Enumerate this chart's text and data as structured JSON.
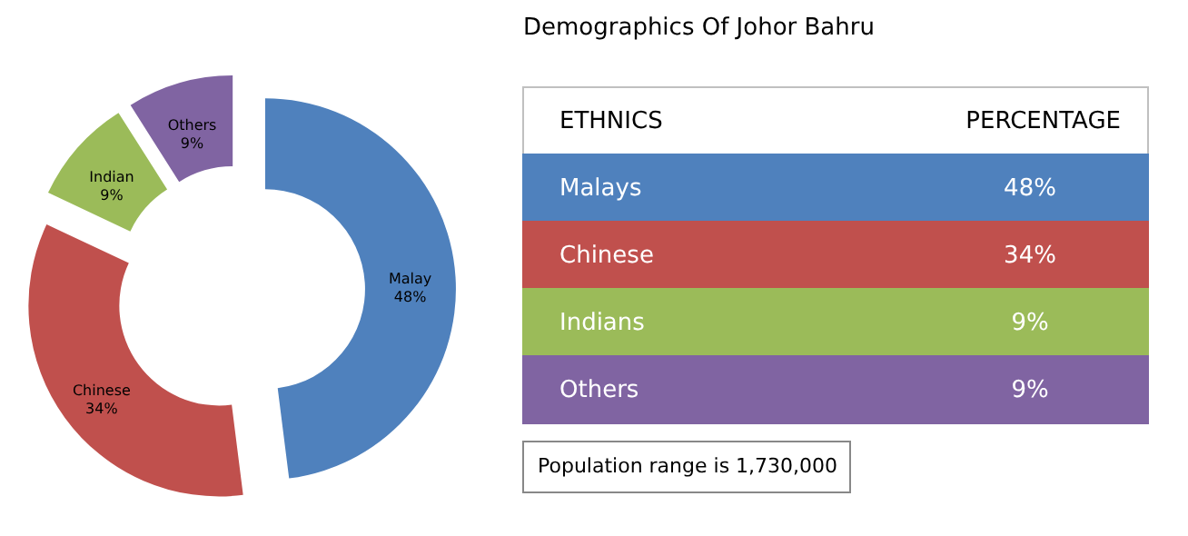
{
  "chart_data": [
    {
      "type": "donut",
      "categories": [
        "Malay",
        "Chinese",
        "Indian",
        "Others"
      ],
      "values": [
        48,
        34,
        9,
        9
      ],
      "colors": [
        "#4f81bd",
        "#c0504d",
        "#9bbb59",
        "#8064a2"
      ],
      "value_labels": [
        "48%",
        "34%",
        "9%",
        "9%"
      ]
    },
    {
      "type": "other",
      "title": "Demographics Of Johor Bahru",
      "xlabel": "ETHNICS",
      "ylabel": "PERCENTAGE",
      "categories": [
        "Malays",
        "Chinese",
        "Indians",
        "Others"
      ],
      "colors": [
        "#4f81bd",
        "#c0504d",
        "#9bbb59",
        "#8064a2"
      ],
      "value_labels": [
        "48%",
        "34%",
        "9%",
        "9%"
      ],
      "annotations": [
        "Population range is 1,730,000"
      ]
    }
  ]
}
